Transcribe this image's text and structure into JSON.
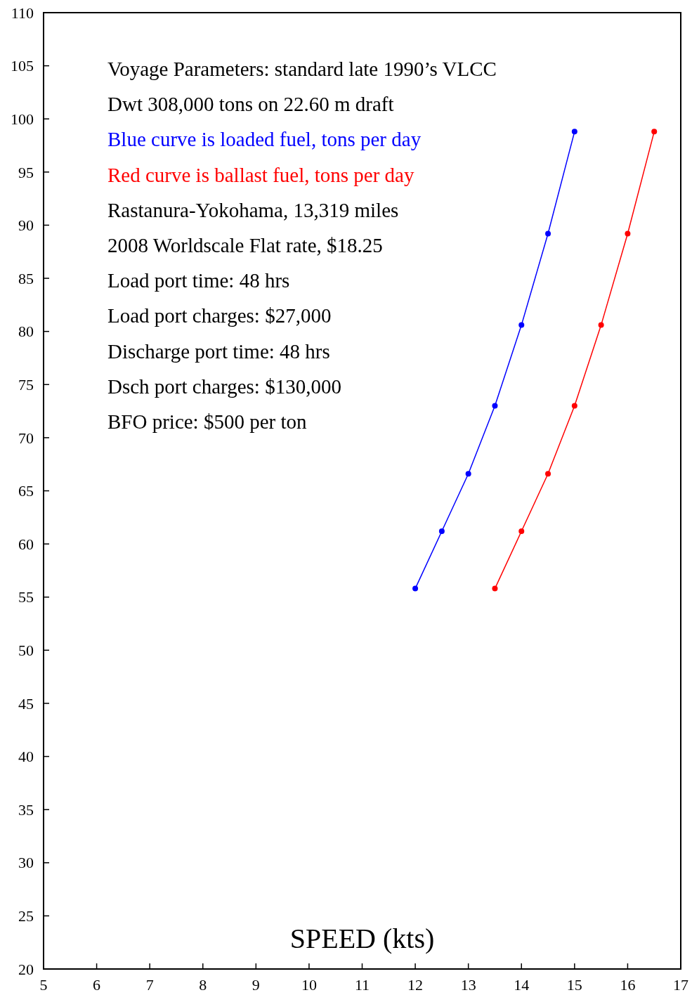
{
  "chart_data": {
    "type": "line",
    "xlabel": "SPEED (kts)",
    "annotations": [
      "Voyage Parameters: standard late 1990’s VLCC",
      "Dwt 308,000 tons on 22.60 m draft",
      "Rastanura-Yokohama, 13,319 miles",
      "2008 Worldscale Flat rate, $18.25",
      "Load port time: 48 hrs",
      "Load port charges: $27,000",
      "Discharge port time: 48 hrs",
      "Dsch port charges: $130,000",
      "BFO price: $500 per ton"
    ],
    "series": [
      {
        "name": "Blue curve is loaded fuel, tons per day",
        "color": "#0000ff",
        "x": [
          12,
          12.5,
          13,
          13.5,
          14,
          14.5,
          15
        ],
        "values": [
          55.8,
          61.2,
          66.6,
          73.0,
          80.6,
          89.2,
          98.8
        ]
      },
      {
        "name": "Red curve is ballast fuel, tons per day",
        "color": "#ff0000",
        "x": [
          13.5,
          14,
          14.5,
          15,
          15.5,
          16,
          16.5
        ],
        "values": [
          55.8,
          61.2,
          66.6,
          73.0,
          80.6,
          89.2,
          98.8
        ]
      }
    ],
    "xlim": [
      5,
      17
    ],
    "xticks": [
      5,
      6,
      7,
      8,
      9,
      10,
      11,
      12,
      13,
      14,
      15,
      16,
      17
    ],
    "ylim": [
      20,
      110
    ],
    "yticks": [
      20,
      25,
      30,
      35,
      40,
      45,
      50,
      55,
      60,
      65,
      70,
      75,
      80,
      85,
      90,
      95,
      100,
      105,
      110
    ],
    "grid": false,
    "legend": "top left",
    "marker": "circle",
    "line_style": "solid"
  }
}
